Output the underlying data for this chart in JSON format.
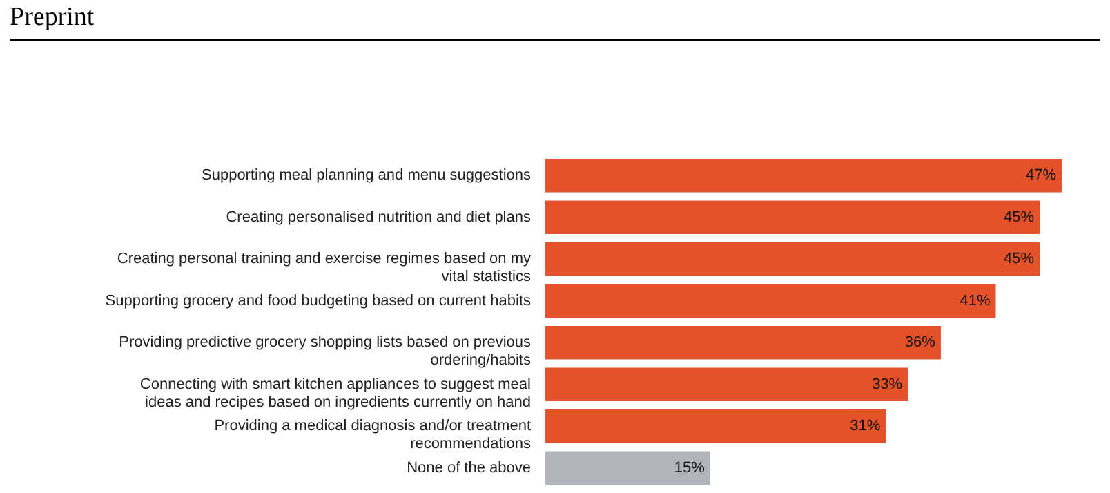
{
  "chart_data": {
    "type": "bar",
    "orientation": "horizontal",
    "title": "Preprint",
    "categories": [
      "Supporting meal planning and menu suggestions",
      "Creating personalised nutrition and diet plans",
      "Creating personal training and exercise regimes based on my vital statistics",
      "Supporting grocery and food budgeting based on current habits",
      "Providing predictive grocery shopping lists based on previous ordering/habits",
      "Connecting with smart kitchen appliances to suggest meal ideas and recipes based on ingredients currently on hand",
      "Providing a medical diagnosis and/or treatment recommendations",
      "None of the above"
    ],
    "values": [
      47,
      45,
      45,
      41,
      36,
      33,
      31,
      15
    ],
    "colors": [
      "#e4522a",
      "#e4522a",
      "#e4522a",
      "#e4522a",
      "#e4522a",
      "#e4522a",
      "#e4522a",
      "#b1b4bb"
    ],
    "value_labels": [
      "47%",
      "45%",
      "45%",
      "41%",
      "36%",
      "33%",
      "31%",
      "15%"
    ]
  }
}
